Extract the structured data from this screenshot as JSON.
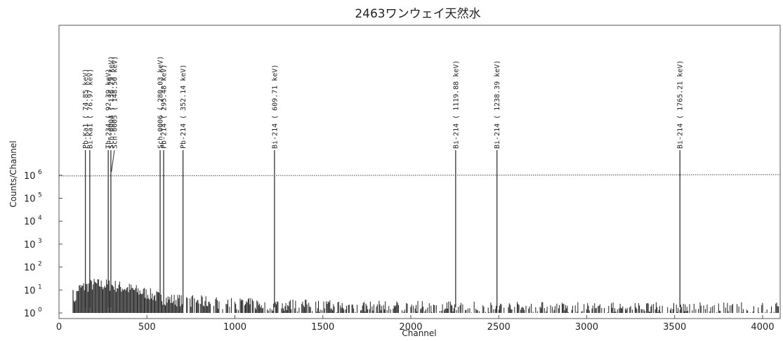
{
  "chart_data": {
    "type": "line",
    "title": "2463ワンウェイ天然水",
    "xlabel": "Channel",
    "ylabel": "Counts/Channel",
    "xlim": [
      0,
      4100
    ],
    "xticks": [
      0,
      500,
      1000,
      1500,
      2000,
      2500,
      3000,
      3500,
      4000
    ],
    "ylim_log10": [
      0,
      6.3
    ],
    "yticks": [
      {
        "base": "10",
        "exp": "6",
        "value": 6
      },
      {
        "base": "10",
        "exp": "5",
        "value": 5
      },
      {
        "base": "10",
        "exp": "4",
        "value": 4
      },
      {
        "base": "10",
        "exp": "3",
        "value": 3
      },
      {
        "base": "10",
        "exp": "2",
        "value": 2
      },
      {
        "base": "10",
        "exp": "1",
        "value": 1
      },
      {
        "base": "10",
        "exp": "0",
        "value": 0
      }
    ],
    "reference_line": {
      "start_log10": 5.97,
      "end_log10": 6.03,
      "style": "dotted"
    },
    "spectrum_envelope": [
      {
        "channel": 80,
        "log10": 0
      },
      {
        "channel": 90,
        "log10": 0.6
      },
      {
        "channel": 110,
        "log10": 1.05
      },
      {
        "channel": 200,
        "log10": 1.25
      },
      {
        "channel": 300,
        "log10": 1.2
      },
      {
        "channel": 400,
        "log10": 1.05
      },
      {
        "channel": 500,
        "log10": 0.85
      },
      {
        "channel": 600,
        "log10": 0.6
      },
      {
        "channel": 800,
        "log10": 0.5
      },
      {
        "channel": 1000,
        "log10": 0.4
      },
      {
        "channel": 1500,
        "log10": 0.3
      },
      {
        "channel": 2000,
        "log10": 0.25
      },
      {
        "channel": 3000,
        "log10": 0.2
      },
      {
        "channel": 4050,
        "log10": 0.2
      }
    ],
    "peaks": [
      {
        "channel": 150,
        "label": "Pb-Ka1 (  74.85 keV)"
      },
      {
        "channel": 175,
        "label": "Bi-Ka1 (  76.97 keV)"
      },
      {
        "channel": 280,
        "label": "Th-234 (  92.39 keV)"
      },
      {
        "channel": 295,
        "label": "Sch-0004 ( 136.79 keV)"
      },
      {
        "channel": 575,
        "label": "Sch-0006 ( 280.03 keV)"
      },
      {
        "channel": 595,
        "label": "Pb-214 ( 295.48 keV)"
      },
      {
        "channel": 705,
        "label": "Pb-214 ( 352.14 keV)"
      },
      {
        "channel": 1225,
        "label": "Bi-214 ( 609.71 keV)"
      },
      {
        "channel": 2255,
        "label": "Bi-214 ( 1119.88 keV)"
      },
      {
        "channel": 2490,
        "label": "Bi-214 ( 1238.39 keV)"
      },
      {
        "channel": 3530,
        "label": "Bi-214 ( 1765.21 keV)"
      }
    ],
    "extra_peak_label": {
      "channel": 315,
      "label": "Sch-0005 ( 148.50 keV)"
    },
    "grid": false,
    "legend": "none"
  }
}
